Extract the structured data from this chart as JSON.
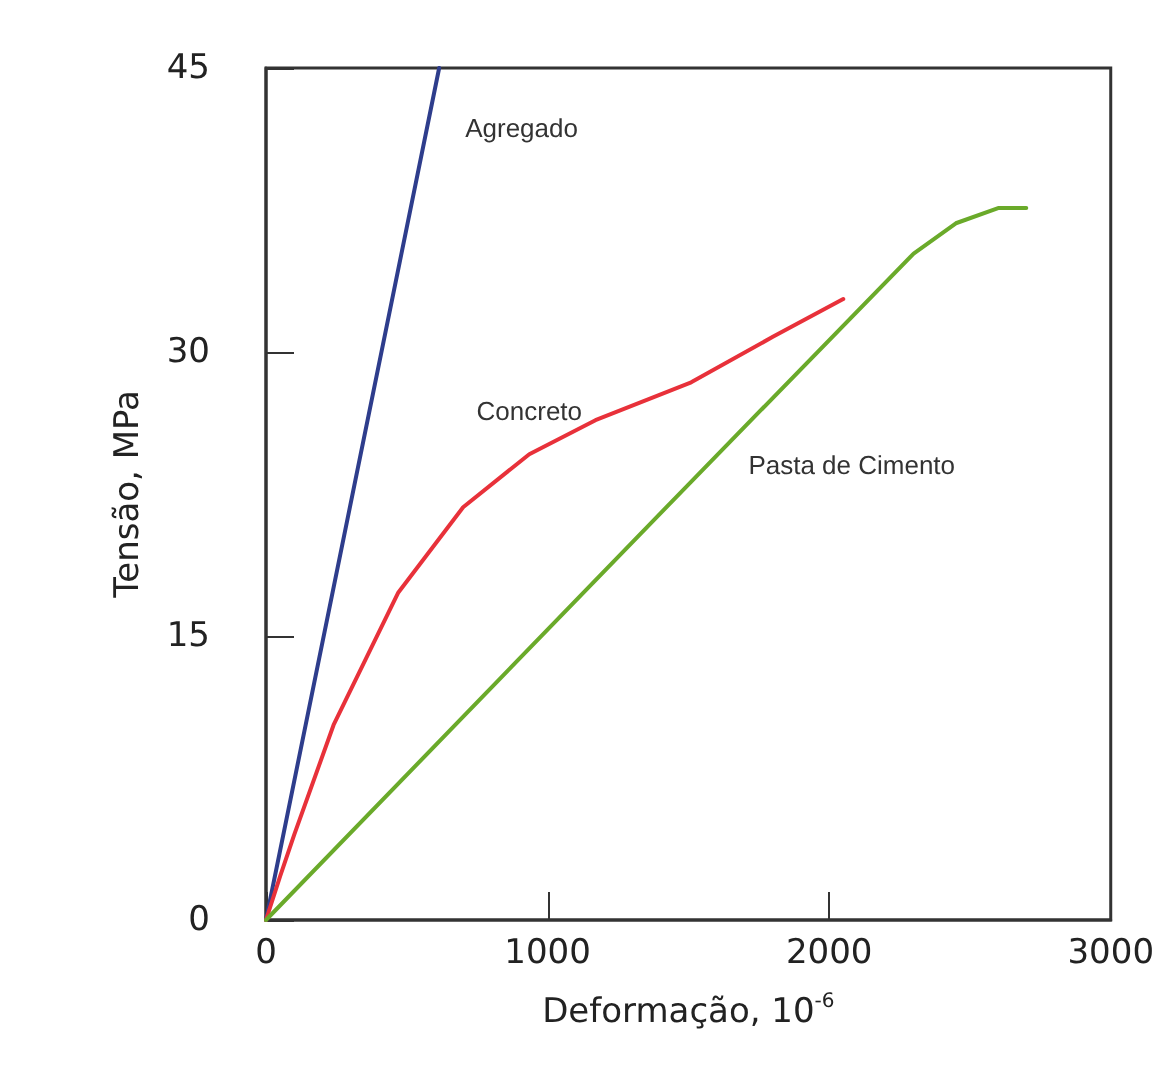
{
  "chart_data": {
    "type": "line",
    "xlabel": "Deformação, 10$^{-6}$",
    "ylabel": "Tensão, MPa",
    "xlim": [
      0,
      3000
    ],
    "ylim": [
      0,
      45
    ],
    "xticks": [
      0,
      1000,
      2000,
      3000
    ],
    "yticks": [
      0,
      15,
      30,
      45
    ],
    "grid": false,
    "legend": false,
    "marker": "none",
    "line_style": "solid",
    "series": [
      {
        "name": "Agregado",
        "color": "#2e3d8c",
        "x": [
          0,
          615
        ],
        "values": [
          0,
          45
        ]
      },
      {
        "name": "Concreto",
        "color": "#e8313a",
        "x": [
          0,
          50,
          100,
          240,
          470,
          700,
          935,
          1170,
          1510,
          1800,
          2050
        ],
        "values": [
          0,
          2.3,
          4.5,
          10.3,
          17.3,
          21.8,
          24.6,
          26.4,
          28.4,
          30.8,
          32.8
        ]
      },
      {
        "name": "Pasta de Cimento",
        "color": "#6aaa2a",
        "x": [
          0,
          1500,
          2300,
          2450,
          2600,
          2700
        ],
        "values": [
          0,
          23,
          35.2,
          36.8,
          37.6,
          37.6
        ]
      }
    ]
  }
}
